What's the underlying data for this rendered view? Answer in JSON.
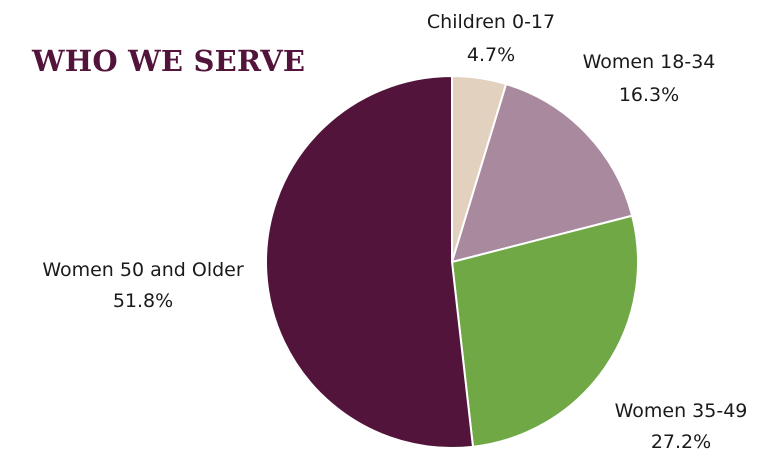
{
  "chart_data": {
    "type": "pie",
    "title": "WHO WE SERVE",
    "slices": [
      {
        "label": "Children 0-17",
        "value": 4.7,
        "value_label": "4.7%",
        "color": "#e3d1bf"
      },
      {
        "label": "Women 18-34",
        "value": 16.3,
        "value_label": "16.3%",
        "color": "#a8899d"
      },
      {
        "label": "Women 35-49",
        "value": 27.2,
        "value_label": "27.2%",
        "color": "#70a846"
      },
      {
        "label": "Women 50 and Older",
        "value": 51.8,
        "value_label": "51.8%",
        "color": "#52143a"
      }
    ],
    "start_angle": "12 o'clock",
    "direction": "clockwise",
    "legend": "none",
    "labels": "outside"
  }
}
